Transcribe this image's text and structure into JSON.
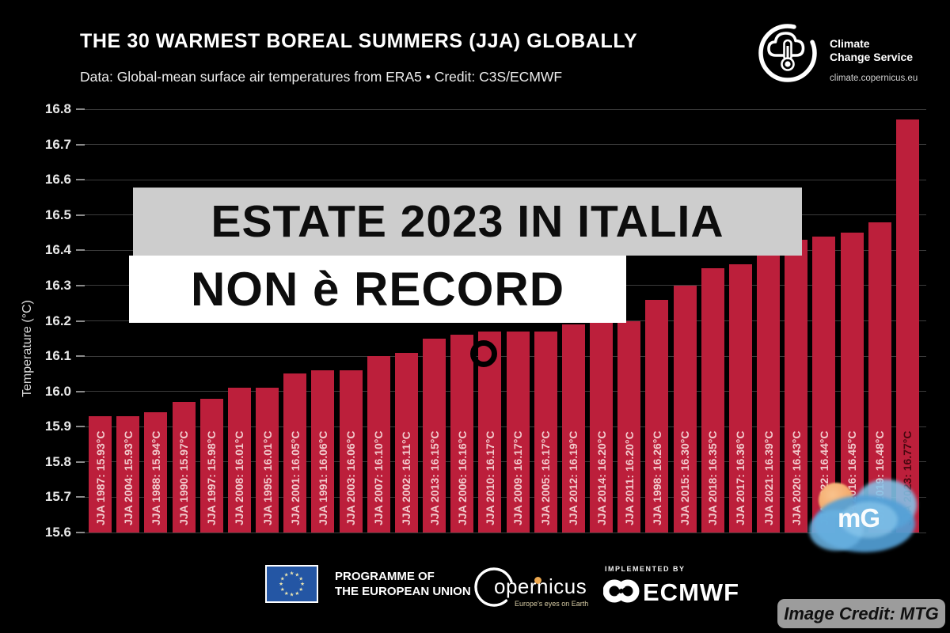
{
  "header": {
    "title": "THE 30 WARMEST BOREAL SUMMERS (JJA) GLOBALLY",
    "subtitle": "Data: Global-mean surface air temperatures from ERA5 • Credit: C3S/ECMWF"
  },
  "c3s_logo": {
    "icon": "cloud-thermometer-icon",
    "line1": "Climate",
    "line2": "Change Service",
    "url": "climate.copernicus.eu"
  },
  "overlay": {
    "line1": "ESTATE 2023 IN ITALIA",
    "line2": "NON è RECORD"
  },
  "chart_data": {
    "type": "bar",
    "title": "THE 30 WARMEST BOREAL SUMMERS (JJA) GLOBALLY",
    "xlabel": "",
    "ylabel": "Temperature (°C)",
    "ylim": [
      15.6,
      16.8
    ],
    "grid": true,
    "legend": false,
    "yticks": [
      "15.6",
      "15.7",
      "15.8",
      "15.9",
      "16.0",
      "16.1",
      "16.2",
      "16.3",
      "16.4",
      "16.5",
      "16.6",
      "16.7",
      "16.8"
    ],
    "categories": [
      "JJA 1987",
      "JJA 2004",
      "JJA 1988",
      "JJA 1990",
      "JJA 1997",
      "JJA 2008",
      "JJA 1995",
      "JJA 2001",
      "JJA 1991",
      "JJA 2003",
      "JJA 2007",
      "JJA 2002",
      "JJA 2013",
      "JJA 2006",
      "JJA 2010",
      "JJA 2009",
      "JJA 2005",
      "JJA 2012",
      "JJA 2014",
      "JJA 2011",
      "JJA 1998",
      "JJA 2015",
      "JJA 2018",
      "JJA 2017",
      "JJA 2021",
      "JJA 2020",
      "JJA 2022",
      "JJA 2016",
      "JJA 2019",
      "JJA 2023"
    ],
    "values": [
      15.93,
      15.93,
      15.94,
      15.97,
      15.98,
      16.01,
      16.01,
      16.05,
      16.06,
      16.06,
      16.1,
      16.11,
      16.15,
      16.16,
      16.17,
      16.17,
      16.17,
      16.19,
      16.2,
      16.2,
      16.26,
      16.3,
      16.35,
      16.36,
      16.39,
      16.43,
      16.44,
      16.45,
      16.48,
      16.77
    ],
    "bar_labels": [
      "JJA 1987: 15.93°C",
      "JJA 2004: 15.93°C",
      "JJA 1988: 15.94°C",
      "JJA 1990: 15.97°C",
      "JJA 1997: 15.98°C",
      "JJA 2008: 16.01°C",
      "JJA 1995: 16.01°C",
      "JJA 2001: 16.05°C",
      "JJA 1991: 16.06°C",
      "JJA 2003: 16.06°C",
      "JJA 2007: 16.10°C",
      "JJA 2002: 16.11°C",
      "JJA 2013: 16.15°C",
      "JJA 2006: 16.16°C",
      "JJA 2010: 16.17°C",
      "JJA 2009: 16.17°C",
      "JJA 2005: 16.17°C",
      "JJA 2012: 16.19°C",
      "JJA 2014: 16.20°C",
      "JJA 2011: 16.20°C",
      "JJA 1998: 16.26°C",
      "JJA 2015: 16.30°C",
      "JJA 2018: 16.35°C",
      "JJA 2017: 16.36°C",
      "JJA 2021: 16.39°C",
      "JJA 2020: 16.43°C",
      "JJA 2022: 16.44°C",
      "JJA 2016: 16.45°C",
      "JJA 2019: 16.48°C",
      "JJA 2023: 16.77°C"
    ],
    "bar_color": "#bc1f3b",
    "label_color": "#f2cbcd",
    "last_label_color": "#47070f",
    "grid_color": "#3c3c3c"
  },
  "footer": {
    "eu": {
      "icon": "eu-flag-icon",
      "line1": "PROGRAMME OF",
      "line2": "THE EUROPEAN UNION"
    },
    "copernicus": {
      "icon": "copernicus-crescent-icon",
      "text": "opernicus",
      "tagline": "Europe's eyes on Earth"
    },
    "ecmwf": {
      "implemented_by": "IMPLEMENTED BY",
      "icon": "ecmwf-links-icon",
      "name": "ECMWF"
    }
  },
  "watermark": {
    "logo_text": "mG",
    "credit": "Image Credit: MTG"
  }
}
